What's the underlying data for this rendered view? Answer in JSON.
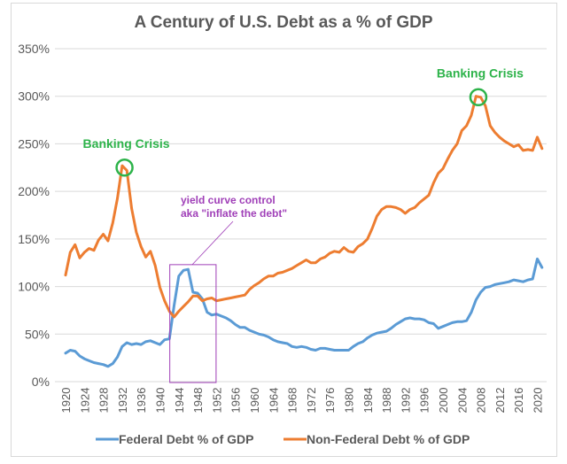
{
  "chart_data": {
    "type": "line",
    "title": "A Century of U.S. Debt as a % of GDP",
    "xlabel": "",
    "ylabel": "",
    "ylim": [
      0,
      350
    ],
    "xlim": [
      1920,
      2021
    ],
    "grid": true,
    "legend_position": "bottom",
    "y_ticks": [
      "0%",
      "50%",
      "100%",
      "150%",
      "200%",
      "250%",
      "300%",
      "350%"
    ],
    "y_tick_values": [
      0,
      50,
      100,
      150,
      200,
      250,
      300,
      350
    ],
    "x_ticks": [
      "1920",
      "1924",
      "1928",
      "1932",
      "1936",
      "1940",
      "1944",
      "1948",
      "1952",
      "1956",
      "1960",
      "1964",
      "1968",
      "1972",
      "1976",
      "1980",
      "1984",
      "1988",
      "1992",
      "1996",
      "2000",
      "2004",
      "2008",
      "2012",
      "2016",
      "2020"
    ],
    "x": [
      1920,
      1921,
      1922,
      1923,
      1924,
      1925,
      1926,
      1927,
      1928,
      1929,
      1930,
      1931,
      1932,
      1933,
      1934,
      1935,
      1936,
      1937,
      1938,
      1939,
      1940,
      1941,
      1942,
      1943,
      1944,
      1945,
      1946,
      1947,
      1948,
      1949,
      1950,
      1951,
      1952,
      1953,
      1954,
      1955,
      1956,
      1957,
      1958,
      1959,
      1960,
      1961,
      1962,
      1963,
      1964,
      1965,
      1966,
      1967,
      1968,
      1969,
      1970,
      1971,
      1972,
      1973,
      1974,
      1975,
      1976,
      1977,
      1978,
      1979,
      1980,
      1981,
      1982,
      1983,
      1984,
      1985,
      1986,
      1987,
      1988,
      1989,
      1990,
      1991,
      1992,
      1993,
      1994,
      1995,
      1996,
      1997,
      1998,
      1999,
      2000,
      2001,
      2002,
      2003,
      2004,
      2005,
      2006,
      2007,
      2008,
      2009,
      2010,
      2011,
      2012,
      2013,
      2014,
      2015,
      2016,
      2017,
      2018,
      2019,
      2020,
      2021
    ],
    "series": [
      {
        "name": "Federal Debt % of GDP",
        "color": "#5b9bd5",
        "values": [
          30,
          33,
          32,
          27,
          24,
          22,
          20,
          19,
          18,
          16,
          19,
          26,
          37,
          41,
          39,
          40,
          39,
          42,
          43,
          41,
          39,
          44,
          45,
          80,
          111,
          117,
          118,
          94,
          93,
          87,
          73,
          70,
          71,
          69,
          67,
          64,
          60,
          57,
          57,
          54,
          52,
          50,
          49,
          47,
          44,
          42,
          41,
          40,
          37,
          36,
          37,
          36,
          34,
          33,
          35,
          35,
          34,
          33,
          33,
          33,
          33,
          37,
          40,
          42,
          46,
          49,
          51,
          52,
          53,
          56,
          60,
          63,
          66,
          67,
          66,
          66,
          65,
          62,
          61,
          56,
          58,
          60,
          62,
          63,
          63,
          64,
          73,
          86,
          94,
          99,
          100,
          102,
          103,
          104,
          105,
          107,
          106,
          105,
          107,
          108,
          129,
          120
        ]
      },
      {
        "name": "Non-Federal Debt % of GDP",
        "color": "#ed7d31",
        "values": [
          112,
          136,
          144,
          130,
          136,
          140,
          138,
          149,
          155,
          148,
          167,
          193,
          227,
          222,
          182,
          157,
          142,
          131,
          137,
          122,
          99,
          85,
          74,
          68,
          74,
          79,
          84,
          90,
          90,
          85,
          87,
          88,
          85,
          86,
          87,
          88,
          89,
          90,
          91,
          97,
          101,
          104,
          108,
          111,
          111,
          114,
          115,
          117,
          119,
          122,
          125,
          128,
          125,
          125,
          129,
          131,
          135,
          137,
          136,
          141,
          137,
          136,
          142,
          145,
          150,
          161,
          174,
          181,
          184,
          184,
          183,
          181,
          177,
          181,
          183,
          188,
          192,
          196,
          209,
          219,
          224,
          234,
          243,
          250,
          264,
          269,
          280,
          300,
          299,
          290,
          269,
          262,
          257,
          253,
          250,
          247,
          249,
          243,
          244,
          243,
          257,
          245
        ]
      }
    ],
    "annotations": [
      {
        "text": "Banking Crisis",
        "color": "#2db34a",
        "x": 1932.5,
        "y": 226
      },
      {
        "text": "Banking Crisis",
        "color": "#2db34a",
        "x": 2007.5,
        "y": 300
      },
      {
        "text_lines": [
          "yield curve control",
          "aka \"inflate the debt\""
        ],
        "color": "#a040b8",
        "box_x": [
          1942,
          1952
        ],
        "box_y": [
          0,
          123
        ]
      }
    ]
  }
}
